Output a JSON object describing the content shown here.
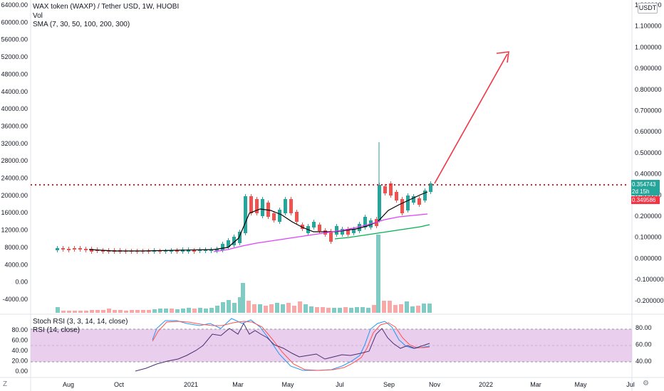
{
  "header": {
    "symbol_line": "WAX token (WAXP) / Tether USD, 1W, HUOBI",
    "vol_label": "Vol",
    "sma_label": "SMA (7, 30, 50, 100, 200, 300)"
  },
  "currency_button": "USDT",
  "left_axis_labels": [
    "64000.00",
    "60000.00",
    "56000.00",
    "52000.00",
    "48000.00",
    "44000.00",
    "40000.00",
    "36000.00",
    "32000.00",
    "28000.00",
    "24000.00",
    "20000.00",
    "16000.00",
    "12000.00",
    "8000.00",
    "4000.00",
    "0.00",
    "-4000.00"
  ],
  "right_axis_labels": [
    "1.200000",
    "1.100000",
    "1.000000",
    "0.900000",
    "0.800000",
    "0.700000",
    "0.600000",
    "0.500000",
    "0.400000",
    "0.300000",
    "0.200000",
    "0.100000",
    "0.000000",
    "-0.100000",
    "-0.200000"
  ],
  "price_badges": {
    "last_price": "0.354743",
    "countdown": "2d 15h",
    "marked_price": "0.349586"
  },
  "rsi_pane": {
    "stoch_label": "Stoch RSI (3, 3, 14, 14, close)",
    "rsi_label": "RSI (14, close)",
    "left_labels": [
      "80.00",
      "60.00",
      "40.00",
      "20.00",
      "0.00"
    ],
    "right_labels": [
      "80.00",
      "60.00",
      "40.00"
    ]
  },
  "time_axis": [
    "Aug",
    "Oct",
    "2021",
    "Mar",
    "May",
    "Jul",
    "Sep",
    "Nov",
    "2022",
    "Mar",
    "May",
    "Jul"
  ],
  "colors": {
    "up": "#26a69a",
    "down": "#ef5350",
    "level_line": "#e02020",
    "arrow": "#f23645",
    "sma_black": "#000000",
    "sma_magenta": "#e040fb",
    "sma_green": "#00b050",
    "stoch_k": "#2196f3",
    "stoch_d": "#ff5252",
    "rsi": "#7e57c2",
    "rsi_band": "#e1bee7"
  },
  "icons": {
    "tz": "z-icon",
    "settings": "gear-icon"
  }
}
